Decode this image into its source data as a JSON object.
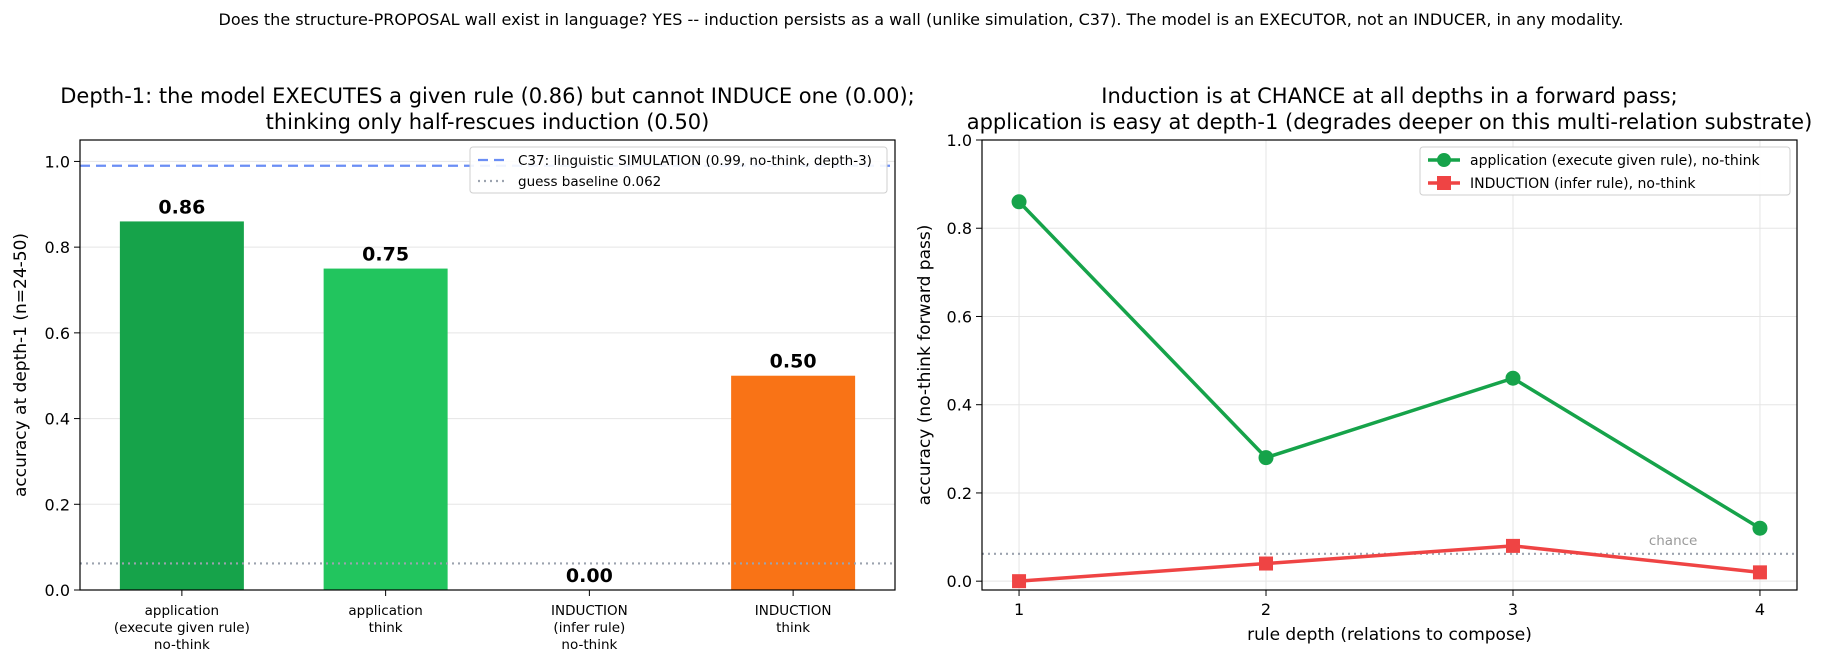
{
  "figure": {
    "suptitle": "Does the structure-PROPOSAL wall exist in language? YES -- induction persists as a wall (unlike simulation, C37). The model is an EXECUTOR, not an INDUCER, in any modality."
  },
  "chart_data": [
    {
      "type": "bar",
      "title_lines": [
        "Depth-1: the model EXECUTES a given rule (0.86) but cannot INDUCE one (0.00);",
        "thinking only half-rescues induction (0.50)"
      ],
      "xlabel": "",
      "ylabel": "accuracy at depth-1 (n=24-50)",
      "ylim": [
        0,
        1.05
      ],
      "yticks": [
        "0.0",
        "0.2",
        "0.4",
        "0.6",
        "0.8",
        "1.0"
      ],
      "grid": "y",
      "categories": [
        [
          "application",
          "(execute given rule)",
          "no-think"
        ],
        [
          "application",
          "think"
        ],
        [
          "INDUCTION",
          "(infer rule)",
          "no-think"
        ],
        [
          "INDUCTION",
          "think"
        ]
      ],
      "values": [
        0.86,
        0.75,
        0.0,
        0.5
      ],
      "value_labels": [
        "0.86",
        "0.75",
        "0.00",
        "0.50"
      ],
      "bar_colors": [
        "#16a34a",
        "#22c55e",
        "#16a34a",
        "#f97316"
      ],
      "reference_lines": [
        {
          "y": 0.99,
          "style": "dashed",
          "color": "#6b8ef5",
          "label": "C37: linguistic SIMULATION (0.99, no-think, depth-3)"
        },
        {
          "y": 0.062,
          "style": "dotted",
          "color": "#9ca3af",
          "label": "guess baseline 0.062"
        }
      ],
      "legend": "top-right"
    },
    {
      "type": "line",
      "title_lines": [
        "Induction is at CHANCE at all depths in a forward pass;",
        "application is easy at depth-1 (degrades deeper on this multi-relation substrate)"
      ],
      "xlabel": "rule depth (relations to compose)",
      "ylabel": "accuracy (no-think forward pass)",
      "x": [
        1,
        2,
        3,
        4
      ],
      "xticks": [
        "1",
        "2",
        "3",
        "4"
      ],
      "xlim": [
        0.85,
        4.15
      ],
      "ylim": [
        -0.02,
        1.0
      ],
      "yticks": [
        "0.0",
        "0.2",
        "0.4",
        "0.6",
        "0.8",
        "1.0"
      ],
      "grid": "both",
      "series": [
        {
          "name": "application (execute given rule), no-think",
          "values": [
            0.86,
            0.28,
            0.46,
            0.12
          ],
          "color": "#16a34a",
          "marker": "circle"
        },
        {
          "name": "INDUCTION (infer rule), no-think",
          "values": [
            0.0,
            0.04,
            0.08,
            0.02
          ],
          "color": "#ef4444",
          "marker": "square"
        }
      ],
      "reference_lines": [
        {
          "y": 0.062,
          "style": "dotted",
          "color": "#9ca3af",
          "label": "chance"
        }
      ],
      "legend": "top-right"
    }
  ]
}
